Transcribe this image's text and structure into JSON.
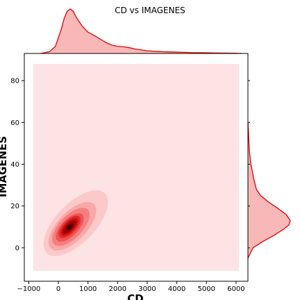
{
  "chart_data": {
    "type": "jointplot-kde",
    "title": "CD vs IMAGENES",
    "xlabel": "CD",
    "ylabel": "IMAGENES",
    "xlim": [
      -1150,
      6400
    ],
    "ylim": [
      -16,
      93
    ],
    "x_ticks": [
      -1000,
      0,
      1000,
      2000,
      3000,
      4000,
      5000,
      6000
    ],
    "y_ticks": [
      0,
      20,
      40,
      60,
      80
    ],
    "x_tick_labels": [
      "−1000",
      "0",
      "1000",
      "2000",
      "3000",
      "4000",
      "5000",
      "6000"
    ],
    "y_tick_labels": [
      "0",
      "20",
      "40",
      "60",
      "80"
    ],
    "grid": false,
    "colors": {
      "background_fill": "#fde3e3",
      "kde_line": "#e30000",
      "marginal_fill": "#f9b8b8",
      "contour_levels": [
        "#fcc9c9",
        "#f9a7a7",
        "#f57f7f",
        "#ee5252",
        "#e42a2a",
        "#cc0f0f",
        "#a10303",
        "#6e0000",
        "#3f0000"
      ]
    },
    "density_region": {
      "x": [
        -850,
        6100
      ],
      "y": [
        -11,
        88
      ]
    },
    "joint_density": {
      "center": [
        380,
        10
      ],
      "levels": [
        {
          "x": [
            -500,
            1950
          ],
          "y": [
            -4,
            30
          ]
        },
        {
          "x": [
            -380,
            1450
          ],
          "y": [
            -2,
            23
          ]
        },
        {
          "x": [
            -250,
            1150
          ],
          "y": [
            0,
            20
          ]
        },
        {
          "x": [
            -130,
            900
          ],
          "y": [
            2,
            17
          ]
        },
        {
          "x": [
            -30,
            780
          ],
          "y": [
            4,
            16
          ]
        },
        {
          "x": [
            60,
            680
          ],
          "y": [
            5,
            15
          ]
        },
        {
          "x": [
            150,
            600
          ],
          "y": [
            6,
            14
          ]
        },
        {
          "x": [
            230,
            530
          ],
          "y": [
            8,
            12
          ]
        },
        {
          "x": [
            310,
            460
          ],
          "y": [
            9,
            11
          ]
        }
      ]
    },
    "marginal_x": {
      "x": [
        -600,
        -300,
        -100,
        100,
        200,
        300,
        400,
        500,
        600,
        800,
        1000,
        1200,
        1400,
        1600,
        1800,
        2000,
        2200,
        2400,
        2600,
        3000,
        3500,
        4000,
        4500,
        5000,
        5500,
        6000,
        6200
      ],
      "density": [
        0.0,
        0.04,
        0.16,
        0.55,
        0.8,
        0.95,
        1.0,
        0.95,
        0.82,
        0.62,
        0.48,
        0.41,
        0.33,
        0.25,
        0.19,
        0.16,
        0.15,
        0.13,
        0.1,
        0.06,
        0.04,
        0.03,
        0.02,
        0.015,
        0.01,
        0.005,
        0.0
      ]
    },
    "marginal_y": {
      "y": [
        -5,
        0,
        3,
        6,
        9,
        11,
        13,
        16,
        19,
        22,
        25,
        28,
        32,
        36,
        40,
        45,
        50,
        55,
        60
      ],
      "density": [
        0.0,
        0.12,
        0.35,
        0.62,
        0.85,
        0.97,
        1.0,
        0.9,
        0.7,
        0.48,
        0.3,
        0.2,
        0.15,
        0.11,
        0.07,
        0.04,
        0.025,
        0.015,
        0.0
      ]
    }
  }
}
